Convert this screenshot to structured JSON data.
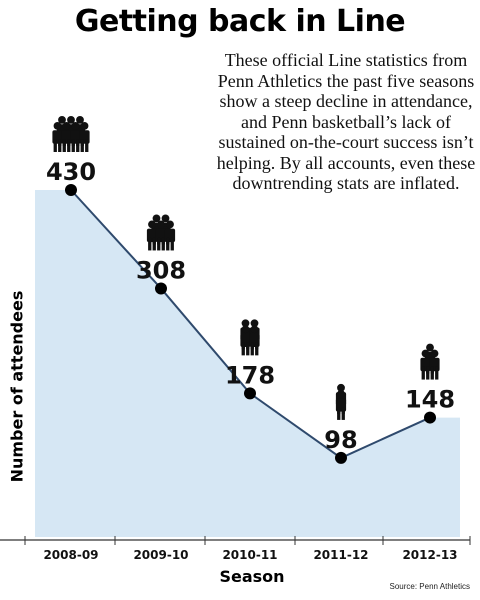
{
  "title": "Getting back in Line",
  "blurb": "These official Line statistics from Penn Athletics the past five seasons show a steep decline in attendance, and Penn basketball’s lack of sustained on-the-court success isn’t helping. By all accounts, even these downtrending stats are inflated.",
  "source": "Source: Penn Athletics",
  "colors": {
    "area": "#d6e7f4",
    "line": "#2f4a6d",
    "marker": "#000000"
  },
  "icons": {
    "attendee_group": "people-group-icon"
  },
  "chart_data": {
    "type": "line",
    "title": "Getting back in Line",
    "xlabel": "Season",
    "ylabel": "Number of attendees",
    "categories": [
      "2008-09",
      "2009-10",
      "2010-11",
      "2011-12",
      "2012-13"
    ],
    "values": [
      430,
      308,
      178,
      98,
      148
    ],
    "data_labels": [
      "430",
      "308",
      "178",
      "98",
      "148"
    ],
    "icon_people_counts": [
      7,
      5,
      4,
      2,
      3
    ],
    "area_fill": true,
    "grid": false,
    "legend": "none",
    "ylim": [
      0,
      450
    ]
  }
}
